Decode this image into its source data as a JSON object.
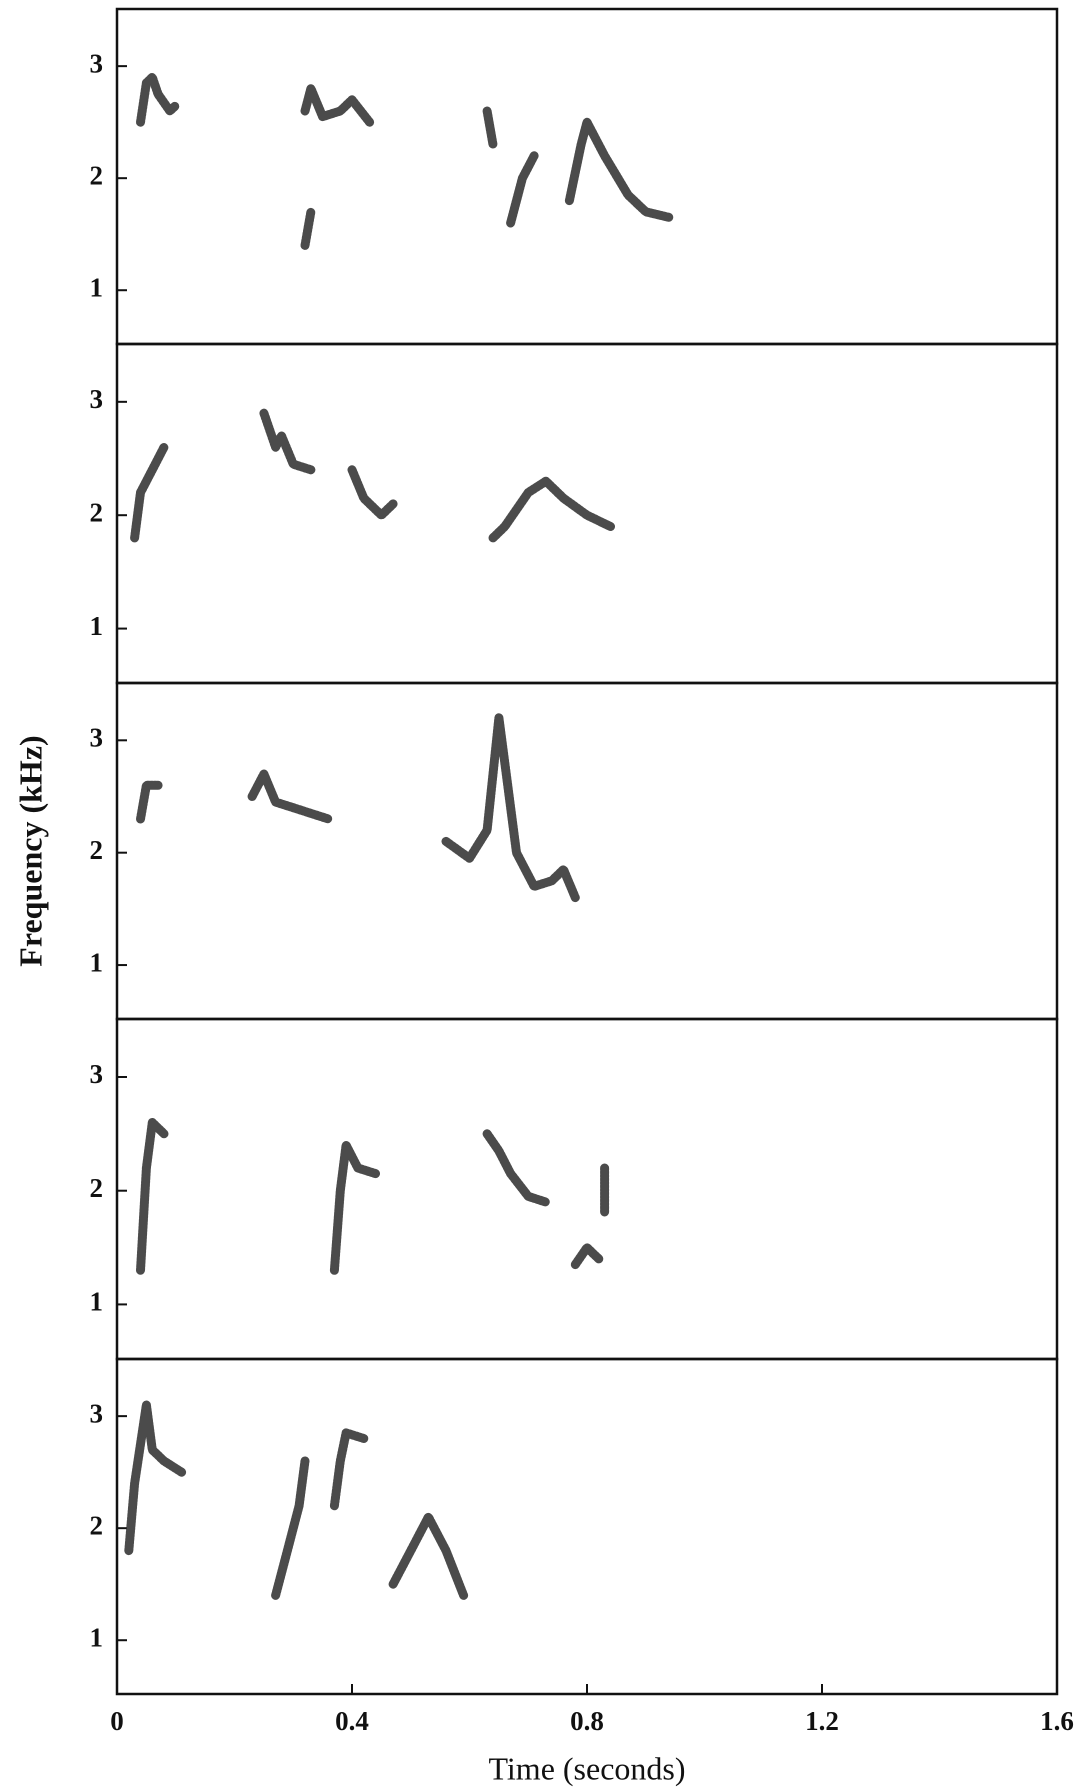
{
  "chart_data": [
    {
      "type": "scatter",
      "color": "#2b2b2b",
      "xlim": [
        0,
        1.6
      ],
      "ylim": [
        0.52,
        3.51
      ],
      "yticks": [
        1,
        2,
        3
      ],
      "series": [
        {
          "x": [
            0.04,
            0.05,
            0.06,
            0.07,
            0.09,
            0.1
          ],
          "values": [
            2.5,
            2.85,
            2.9,
            2.75,
            2.6,
            2.65
          ]
        },
        {
          "x": [
            0.32,
            0.33,
            0.35,
            0.38,
            0.4,
            0.43
          ],
          "values": [
            2.6,
            2.8,
            2.55,
            2.6,
            2.7,
            2.5
          ]
        },
        {
          "x": [
            0.32,
            0.33
          ],
          "values": [
            1.4,
            1.7
          ]
        },
        {
          "x": [
            0.63,
            0.64
          ],
          "values": [
            2.6,
            2.3
          ]
        },
        {
          "x": [
            0.67,
            0.69,
            0.71
          ],
          "values": [
            1.6,
            2.0,
            2.2
          ]
        },
        {
          "x": [
            0.77,
            0.79,
            0.8,
            0.83,
            0.87,
            0.9,
            0.94
          ],
          "values": [
            1.8,
            2.3,
            2.5,
            2.2,
            1.85,
            1.7,
            1.65
          ]
        }
      ]
    },
    {
      "type": "scatter",
      "color": "#2b2b2b",
      "xlim": [
        0,
        1.6
      ],
      "ylim": [
        0.52,
        3.51
      ],
      "yticks": [
        1,
        2,
        3
      ],
      "series": [
        {
          "x": [
            0.03,
            0.04,
            0.06,
            0.08
          ],
          "values": [
            1.8,
            2.2,
            2.4,
            2.6
          ]
        },
        {
          "x": [
            0.25,
            0.27,
            0.28,
            0.3,
            0.33
          ],
          "values": [
            2.9,
            2.6,
            2.7,
            2.45,
            2.4
          ]
        },
        {
          "x": [
            0.4,
            0.42,
            0.45,
            0.47
          ],
          "values": [
            2.4,
            2.15,
            2.0,
            2.1
          ]
        },
        {
          "x": [
            0.64,
            0.66,
            0.7,
            0.73,
            0.76,
            0.8,
            0.84
          ],
          "values": [
            1.8,
            1.9,
            2.2,
            2.3,
            2.15,
            2.0,
            1.9
          ]
        }
      ]
    },
    {
      "type": "scatter",
      "color": "#2b2b2b",
      "xlim": [
        0,
        1.6
      ],
      "ylim": [
        0.52,
        3.51
      ],
      "yticks": [
        1,
        2,
        3
      ],
      "ylabel": "Frequency (kHz)",
      "series": [
        {
          "x": [
            0.04,
            0.05,
            0.07
          ],
          "values": [
            2.3,
            2.6,
            2.6
          ]
        },
        {
          "x": [
            0.23,
            0.25,
            0.27,
            0.3,
            0.33,
            0.36
          ],
          "values": [
            2.5,
            2.7,
            2.45,
            2.4,
            2.35,
            2.3
          ]
        },
        {
          "x": [
            0.56,
            0.6,
            0.63,
            0.65,
            0.66,
            0.68,
            0.71,
            0.74,
            0.76,
            0.78
          ],
          "values": [
            2.1,
            1.95,
            2.2,
            3.2,
            2.8,
            2.0,
            1.7,
            1.75,
            1.85,
            1.6
          ]
        }
      ]
    },
    {
      "type": "scatter",
      "color": "#2b2b2b",
      "xlim": [
        0,
        1.6
      ],
      "ylim": [
        0.52,
        3.51
      ],
      "yticks": [
        1,
        2,
        3
      ],
      "series": [
        {
          "x": [
            0.04,
            0.05,
            0.06,
            0.08
          ],
          "values": [
            1.3,
            2.2,
            2.6,
            2.5
          ]
        },
        {
          "x": [
            0.37,
            0.38,
            0.39,
            0.41,
            0.44
          ],
          "values": [
            1.3,
            2.0,
            2.4,
            2.2,
            2.15
          ]
        },
        {
          "x": [
            0.63,
            0.65,
            0.67,
            0.7,
            0.73
          ],
          "values": [
            2.5,
            2.35,
            2.15,
            1.95,
            1.9
          ]
        },
        {
          "x": [
            0.78,
            0.8,
            0.82
          ],
          "values": [
            1.35,
            1.5,
            1.4
          ]
        },
        {
          "x": [
            0.83,
            0.83
          ],
          "values": [
            2.2,
            1.8
          ]
        }
      ]
    },
    {
      "type": "scatter",
      "color": "#2b2b2b",
      "xlim": [
        0,
        1.6
      ],
      "ylim": [
        0.52,
        3.51
      ],
      "yticks": [
        1,
        2,
        3
      ],
      "xticks": [
        0,
        0.4,
        0.8,
        1.2,
        1.6
      ],
      "xlabel": "Time (seconds)",
      "series": [
        {
          "x": [
            0.02,
            0.03,
            0.05,
            0.06,
            0.08,
            0.11
          ],
          "values": [
            1.8,
            2.4,
            3.1,
            2.7,
            2.6,
            2.5
          ]
        },
        {
          "x": [
            0.27,
            0.29,
            0.31,
            0.32
          ],
          "values": [
            1.4,
            1.8,
            2.2,
            2.6
          ]
        },
        {
          "x": [
            0.37,
            0.38,
            0.39,
            0.42
          ],
          "values": [
            2.2,
            2.6,
            2.85,
            2.8
          ]
        },
        {
          "x": [
            0.47,
            0.5,
            0.53,
            0.56,
            0.59
          ],
          "values": [
            1.5,
            1.8,
            2.1,
            1.8,
            1.4
          ]
        }
      ]
    }
  ]
}
